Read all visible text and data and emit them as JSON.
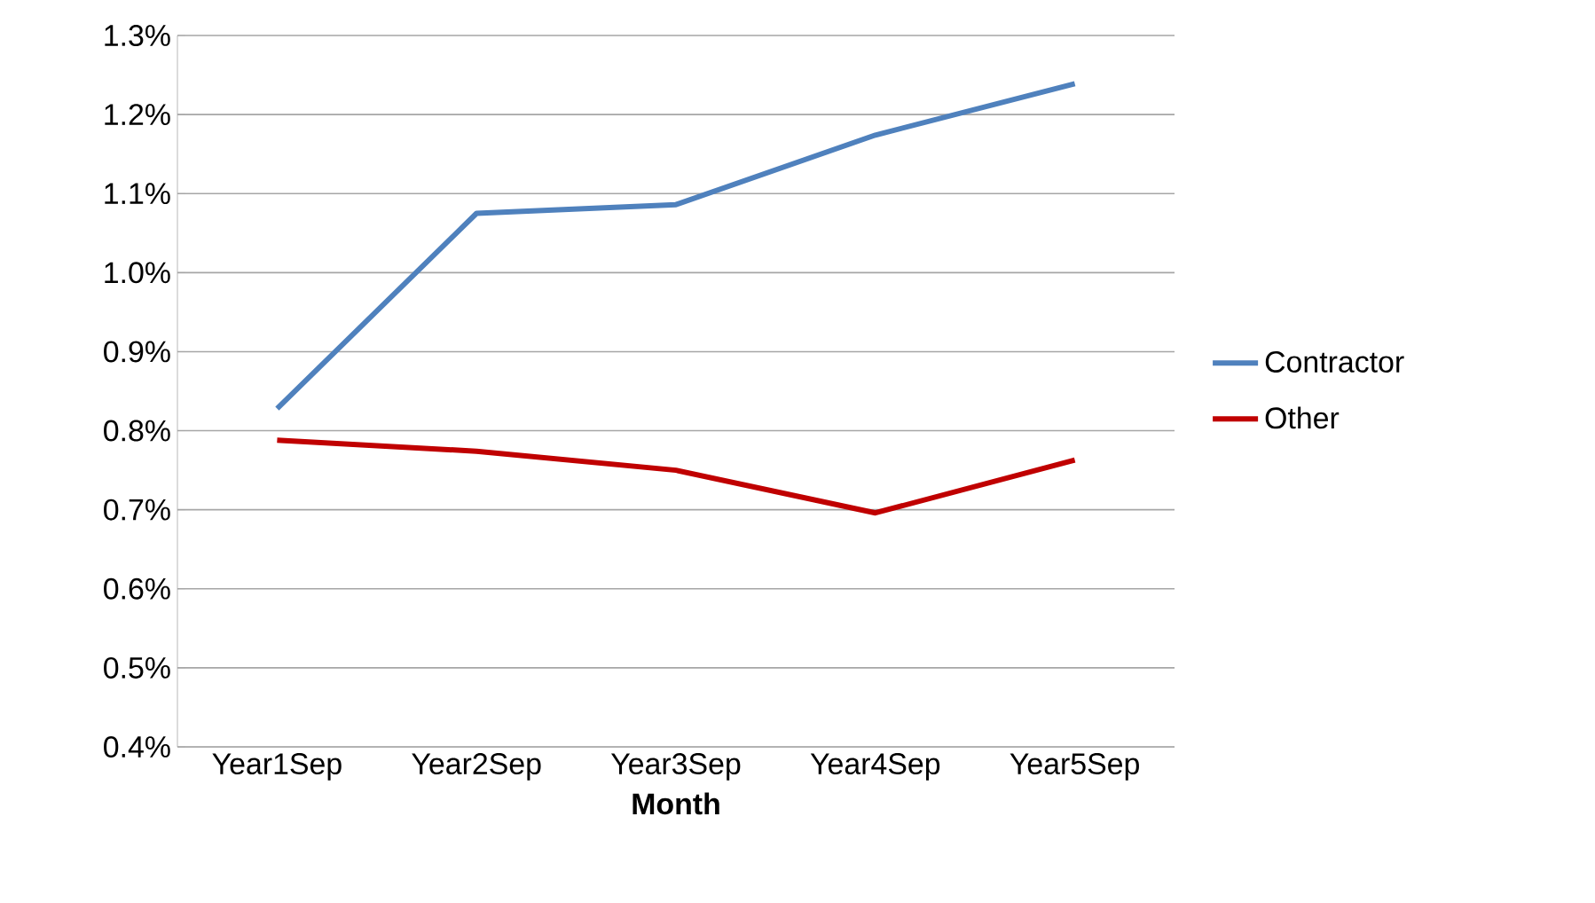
{
  "chart_data": {
    "type": "line",
    "xlabel": "Month",
    "categories": [
      "Year1Sep",
      "Year2Sep",
      "Year3Sep",
      "Year4Sep",
      "Year5Sep"
    ],
    "series": [
      {
        "name": "Contractor",
        "color": "#4f81bd",
        "values": [
          0.828,
          1.075,
          1.086,
          1.174,
          1.239
        ]
      },
      {
        "name": "Other",
        "color": "#c00000",
        "values": [
          0.788,
          0.774,
          0.75,
          0.696,
          0.763
        ]
      }
    ],
    "ylim": [
      0.4,
      1.3
    ],
    "yticks": [
      {
        "value": 0.4,
        "label": "0.4%"
      },
      {
        "value": 0.5,
        "label": "0.5%"
      },
      {
        "value": 0.6,
        "label": "0.6%"
      },
      {
        "value": 0.7,
        "label": "0.7%"
      },
      {
        "value": 0.8,
        "label": "0.8%"
      },
      {
        "value": 0.9,
        "label": "0.9%"
      },
      {
        "value": 1.0,
        "label": "1.0%"
      },
      {
        "value": 1.1,
        "label": "1.1%"
      },
      {
        "value": 1.2,
        "label": "1.2%"
      },
      {
        "value": 1.3,
        "label": "1.3%"
      }
    ],
    "grid": "y",
    "legend": "right",
    "marker": "none",
    "line_style": "solid"
  }
}
